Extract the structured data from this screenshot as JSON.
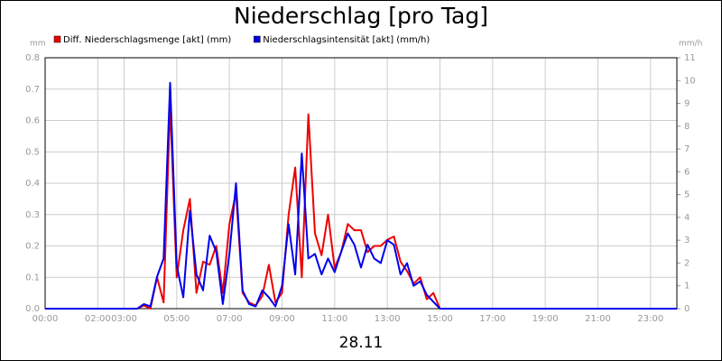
{
  "chart_data": {
    "type": "line",
    "title": "Niederschlag [pro Tag]",
    "subtitle": "28.11",
    "y_label": "mm",
    "y2_label": "mm/h",
    "x": [
      0,
      3.5,
      3.75,
      4.0,
      4.25,
      4.5,
      4.75,
      5.0,
      5.25,
      5.5,
      5.75,
      6.0,
      6.25,
      6.5,
      6.75,
      7.0,
      7.25,
      7.5,
      7.75,
      8.0,
      8.25,
      8.5,
      8.75,
      9.0,
      9.25,
      9.5,
      9.75,
      10.0,
      10.25,
      10.5,
      10.75,
      11.0,
      11.25,
      11.5,
      11.75,
      12.0,
      12.25,
      12.5,
      12.75,
      13.0,
      13.25,
      13.5,
      13.75,
      14.0,
      14.25,
      14.5,
      14.75,
      15.0,
      24
    ],
    "series": [
      {
        "name": "Diff. Niederschlagsmenge [akt] (mm)",
        "color": "#ee0000",
        "values": [
          0,
          0,
          0.01,
          0,
          0.1,
          0.02,
          0.65,
          0.1,
          0.25,
          0.35,
          0.05,
          0.15,
          0.14,
          0.2,
          0.05,
          0.27,
          0.37,
          0.05,
          0.02,
          0.01,
          0.04,
          0.14,
          0.02,
          0.05,
          0.3,
          0.45,
          0.1,
          0.62,
          0.24,
          0.17,
          0.3,
          0.13,
          0.18,
          0.27,
          0.25,
          0.25,
          0.18,
          0.2,
          0.2,
          0.22,
          0.23,
          0.15,
          0.12,
          0.08,
          0.1,
          0.03,
          0.05,
          0,
          0
        ]
      },
      {
        "name": "Niederschlagsintensität [akt] (mm/h)",
        "color": "#0000ee",
        "axis": "y2",
        "values": [
          0,
          0,
          0.2,
          0.1,
          1.4,
          2.2,
          9.9,
          1.9,
          0.5,
          4.3,
          1.5,
          0.8,
          3.2,
          2.5,
          0.2,
          2.4,
          5.5,
          0.8,
          0.2,
          0.1,
          0.8,
          0.5,
          0.1,
          1.0,
          3.7,
          1.5,
          6.8,
          2.2,
          2.4,
          1.5,
          2.2,
          1.6,
          2.5,
          3.3,
          2.8,
          1.8,
          2.8,
          2.2,
          2.0,
          3.0,
          2.8,
          1.5,
          2.0,
          1.0,
          1.2,
          0.6,
          0.3,
          0,
          0
        ]
      }
    ],
    "xlim": [
      0,
      24
    ],
    "xticks": [
      {
        "value": 0,
        "label": "00:00"
      },
      {
        "value": 2,
        "label": "02:00"
      },
      {
        "value": 3,
        "label": "03:00"
      },
      {
        "value": 5,
        "label": "05:00"
      },
      {
        "value": 7,
        "label": "07:00"
      },
      {
        "value": 9,
        "label": "09:00"
      },
      {
        "value": 11,
        "label": "11:00"
      },
      {
        "value": 13,
        "label": "13:00"
      },
      {
        "value": 15,
        "label": "15:00"
      },
      {
        "value": 17,
        "label": "17:00"
      },
      {
        "value": 19,
        "label": "19:00"
      },
      {
        "value": 21,
        "label": "21:00"
      },
      {
        "value": 23,
        "label": "23:00"
      }
    ],
    "ylim": [
      0,
      0.8
    ],
    "yticks": [
      {
        "value": 0,
        "label": "0.0"
      },
      0.1,
      0.2,
      0.3,
      0.4,
      0.5,
      0.6,
      0.7,
      0.8
    ],
    "y2lim": [
      0,
      11
    ],
    "y2ticks": [
      0,
      1,
      2,
      3,
      4,
      5,
      6,
      7,
      8,
      9,
      10,
      11
    ],
    "grid": true,
    "legend": "top"
  }
}
